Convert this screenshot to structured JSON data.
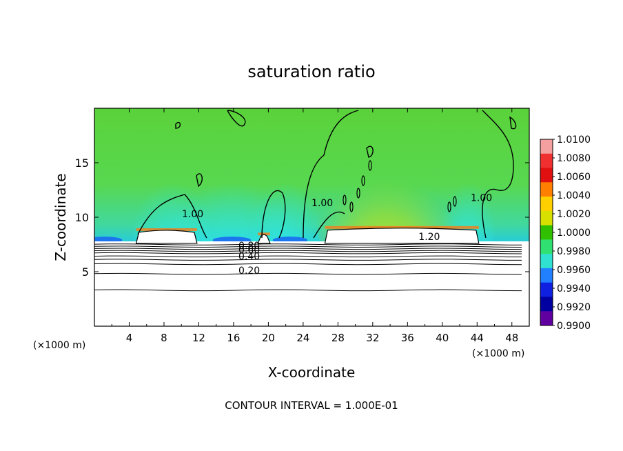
{
  "chart_data": {
    "type": "heatmap",
    "title": "saturation ratio",
    "xlabel": "X-coordinate",
    "ylabel": "Z-coordinate",
    "xunit": "(×1000 m)",
    "xunit_right": "(×1000 m)",
    "footer": "CONTOUR INTERVAL = 1.000E-01",
    "xlim": [
      0,
      50
    ],
    "ylim": [
      0,
      20
    ],
    "xticks": [
      4,
      8,
      12,
      16,
      20,
      24,
      28,
      32,
      36,
      40,
      44,
      48
    ],
    "yticks": [
      5,
      10,
      15
    ],
    "grid": false,
    "colorbar": {
      "values": [
        "1.0100",
        "1.0080",
        "1.0060",
        "1.0040",
        "1.0020",
        "1.0000",
        "0.9980",
        "0.9960",
        "0.9940",
        "0.9920",
        "0.9900"
      ],
      "colors": [
        "#f5a0a0",
        "#f03030",
        "#e01010",
        "#ff8000",
        "#ffd000",
        "#d8e000",
        "#30c000",
        "#30e070",
        "#30e0d0",
        "#2080ff",
        "#1020e0",
        "#0000a0",
        "#6000a0"
      ]
    },
    "contour_labels": [
      {
        "text": "1.20",
        "x": 38.5,
        "y": 7.9
      },
      {
        "text": "1.00",
        "x": 11.3,
        "y": 10.0
      },
      {
        "text": "1.00",
        "x": 26.2,
        "y": 11.0
      },
      {
        "text": "1.00",
        "x": 44.5,
        "y": 11.5
      },
      {
        "text": "0.80",
        "x": 17.8,
        "y": 7.1
      },
      {
        "text": "0.60",
        "x": 17.8,
        "y": 6.7
      },
      {
        "text": "0.40",
        "x": 17.8,
        "y": 6.1
      },
      {
        "text": "0.20",
        "x": 17.8,
        "y": 4.8
      }
    ],
    "contour_levels_below_cloud": [
      3.3,
      4.8,
      5.7,
      6.1,
      6.4,
      6.7,
      6.9,
      7.1,
      7.3,
      7.5
    ],
    "cloud_regions": [
      {
        "x0": 4.8,
        "x1": 11.8,
        "ytop": 8.8
      },
      {
        "x0": 18.8,
        "x1": 20.2,
        "ytop": 8.4
      },
      {
        "x0": 26.5,
        "x1": 44.2,
        "ytop": 9.0
      }
    ]
  }
}
